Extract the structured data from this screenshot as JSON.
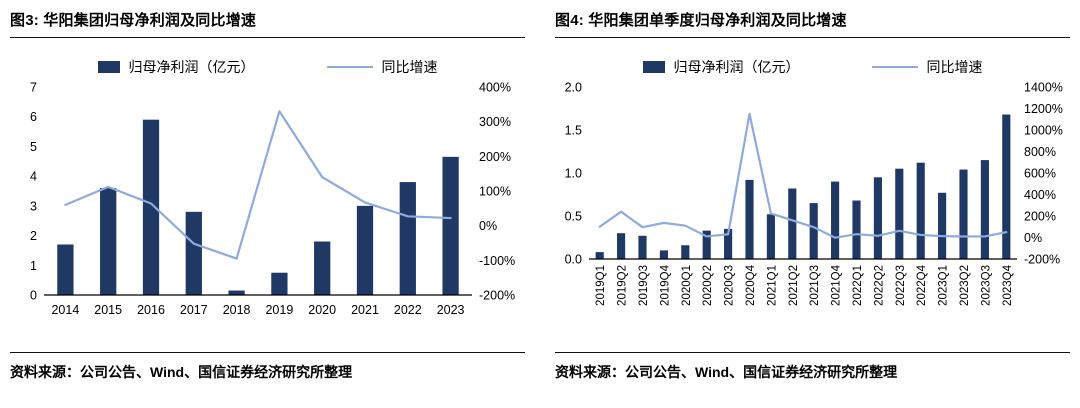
{
  "colors": {
    "bar": "#1f3864",
    "line": "#8faadc",
    "axis": "#000000",
    "rule": "#111111"
  },
  "chart_data": [
    {
      "type": "bar+line",
      "title": "图3: 华阳集团归母净利润及同比增速",
      "source": "资料来源：公司公告、Wind、国信证券经济研究所整理",
      "categories": [
        "2014",
        "2015",
        "2016",
        "2017",
        "2018",
        "2019",
        "2020",
        "2021",
        "2022",
        "2023"
      ],
      "series": [
        {
          "name": "归母净利润（亿元）",
          "type": "bar",
          "axis": "left",
          "values": [
            1.7,
            3.6,
            5.9,
            2.8,
            0.15,
            0.75,
            1.8,
            3.0,
            3.8,
            4.65
          ]
        },
        {
          "name": "同比增速",
          "type": "line",
          "axis": "right",
          "values": [
            60,
            112,
            64,
            -52,
            -95,
            330,
            140,
            67,
            27,
            22
          ]
        }
      ],
      "left_axis": {
        "min": 0,
        "max": 7,
        "tick_values": [
          0,
          1,
          2,
          3,
          4,
          5,
          6,
          7
        ],
        "tick_labels": [
          "0",
          "1",
          "2",
          "3",
          "4",
          "5",
          "6",
          "7"
        ]
      },
      "right_axis": {
        "min": -200,
        "max": 400,
        "tick_values": [
          -200,
          -100,
          0,
          100,
          200,
          300,
          400
        ],
        "tick_labels": [
          "-200%",
          "-100%",
          "0%",
          "100%",
          "200%",
          "300%",
          "400%"
        ]
      },
      "x_tick_rotation": 0,
      "legend_position": "top",
      "grid": false
    },
    {
      "type": "bar+line",
      "title": "图4: 华阳集团单季度归母净利润及同比增速",
      "source": "资料来源：公司公告、Wind、国信证券经济研究所整理",
      "categories": [
        "2019Q1",
        "2019Q2",
        "2019Q3",
        "2019Q4",
        "2020Q1",
        "2020Q2",
        "2020Q3",
        "2020Q4",
        "2021Q1",
        "2021Q2",
        "2021Q3",
        "2021Q4",
        "2022Q1",
        "2022Q2",
        "2022Q3",
        "2022Q4",
        "2023Q1",
        "2023Q2",
        "2023Q3",
        "2023Q4"
      ],
      "series": [
        {
          "name": "归母净利润（亿元）",
          "type": "bar",
          "axis": "left",
          "values": [
            0.08,
            0.3,
            0.27,
            0.1,
            0.16,
            0.33,
            0.35,
            0.92,
            0.52,
            0.82,
            0.65,
            0.9,
            0.68,
            0.95,
            1.05,
            1.12,
            0.77,
            1.04,
            1.15,
            1.68
          ]
        },
        {
          "name": "同比增速",
          "type": "line",
          "axis": "right",
          "values": [
            100,
            240,
            96,
            136,
            110,
            10,
            30,
            1150,
            224,
            160,
            96,
            -2,
            31,
            16,
            62,
            24,
            13,
            9,
            10,
            50
          ]
        }
      ],
      "left_axis": {
        "min": 0,
        "max": 2,
        "tick_values": [
          0,
          0.5,
          1,
          1.5,
          2
        ],
        "tick_labels": [
          "0.0",
          "0.5",
          "1.0",
          "1.5",
          "2.0"
        ]
      },
      "right_axis": {
        "min": -200,
        "max": 1400,
        "tick_values": [
          -200,
          0,
          200,
          400,
          600,
          800,
          1000,
          1200,
          1400
        ],
        "tick_labels": [
          "-200%",
          "0%",
          "200%",
          "400%",
          "600%",
          "800%",
          "1000%",
          "1200%",
          "1400%"
        ]
      },
      "x_tick_rotation": 90,
      "legend_position": "top",
      "grid": false
    }
  ]
}
